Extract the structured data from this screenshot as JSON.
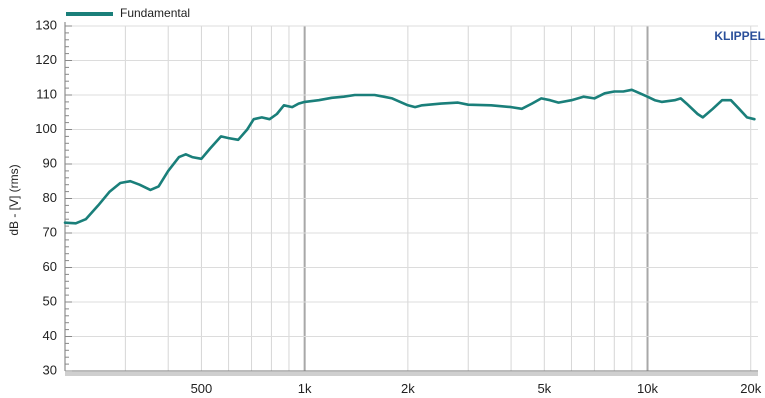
{
  "chart_data": {
    "type": "line",
    "title": "",
    "xlabel": "",
    "ylabel": "dB - [V] (rms)",
    "x_scale": "log",
    "xlim": [
      200,
      21000
    ],
    "ylim": [
      30,
      130
    ],
    "y_ticks": [
      30,
      40,
      50,
      60,
      70,
      80,
      90,
      100,
      110,
      120,
      130
    ],
    "x_ticks": [
      {
        "value": 500,
        "label": "500"
      },
      {
        "value": 1000,
        "label": "1k"
      },
      {
        "value": 2000,
        "label": "2k"
      },
      {
        "value": 5000,
        "label": "5k"
      },
      {
        "value": 10000,
        "label": "10k"
      },
      {
        "value": 20000,
        "label": "20k"
      }
    ],
    "grid": true,
    "legend": {
      "position": "top-left"
    },
    "brand": "KLIPPEL",
    "series": [
      {
        "name": "Fundamental",
        "color": "#1a7f7a",
        "points": [
          [
            200,
            73
          ],
          [
            215,
            72.8
          ],
          [
            230,
            74
          ],
          [
            250,
            78
          ],
          [
            270,
            82
          ],
          [
            290,
            84.5
          ],
          [
            310,
            85
          ],
          [
            330,
            84
          ],
          [
            355,
            82.5
          ],
          [
            375,
            83.5
          ],
          [
            400,
            88
          ],
          [
            430,
            92
          ],
          [
            450,
            92.8
          ],
          [
            470,
            92
          ],
          [
            500,
            91.5
          ],
          [
            530,
            94.5
          ],
          [
            570,
            98
          ],
          [
            600,
            97.5
          ],
          [
            640,
            97
          ],
          [
            680,
            100
          ],
          [
            710,
            103
          ],
          [
            750,
            103.5
          ],
          [
            790,
            103
          ],
          [
            830,
            104.5
          ],
          [
            870,
            107
          ],
          [
            920,
            106.5
          ],
          [
            960,
            107.5
          ],
          [
            1000,
            108
          ],
          [
            1100,
            108.5
          ],
          [
            1200,
            109.2
          ],
          [
            1300,
            109.5
          ],
          [
            1400,
            110
          ],
          [
            1500,
            110
          ],
          [
            1600,
            110
          ],
          [
            1700,
            109.5
          ],
          [
            1800,
            109
          ],
          [
            1900,
            108
          ],
          [
            2000,
            107
          ],
          [
            2100,
            106.5
          ],
          [
            2200,
            107
          ],
          [
            2500,
            107.5
          ],
          [
            2800,
            107.8
          ],
          [
            3000,
            107.2
          ],
          [
            3500,
            107
          ],
          [
            4000,
            106.5
          ],
          [
            4300,
            106
          ],
          [
            4600,
            107.5
          ],
          [
            4900,
            109
          ],
          [
            5200,
            108.5
          ],
          [
            5500,
            107.8
          ],
          [
            6000,
            108.5
          ],
          [
            6500,
            109.5
          ],
          [
            7000,
            109
          ],
          [
            7500,
            110.5
          ],
          [
            8000,
            111
          ],
          [
            8500,
            111
          ],
          [
            9000,
            111.5
          ],
          [
            9500,
            110.5
          ],
          [
            10000,
            109.5
          ],
          [
            10500,
            108.5
          ],
          [
            11000,
            108
          ],
          [
            12000,
            108.5
          ],
          [
            12500,
            109
          ],
          [
            13000,
            107.5
          ],
          [
            14000,
            104.5
          ],
          [
            14500,
            103.5
          ],
          [
            15500,
            106
          ],
          [
            16500,
            108.5
          ],
          [
            17500,
            108.5
          ],
          [
            18500,
            106
          ],
          [
            19500,
            103.5
          ],
          [
            20500,
            103
          ]
        ]
      }
    ]
  }
}
